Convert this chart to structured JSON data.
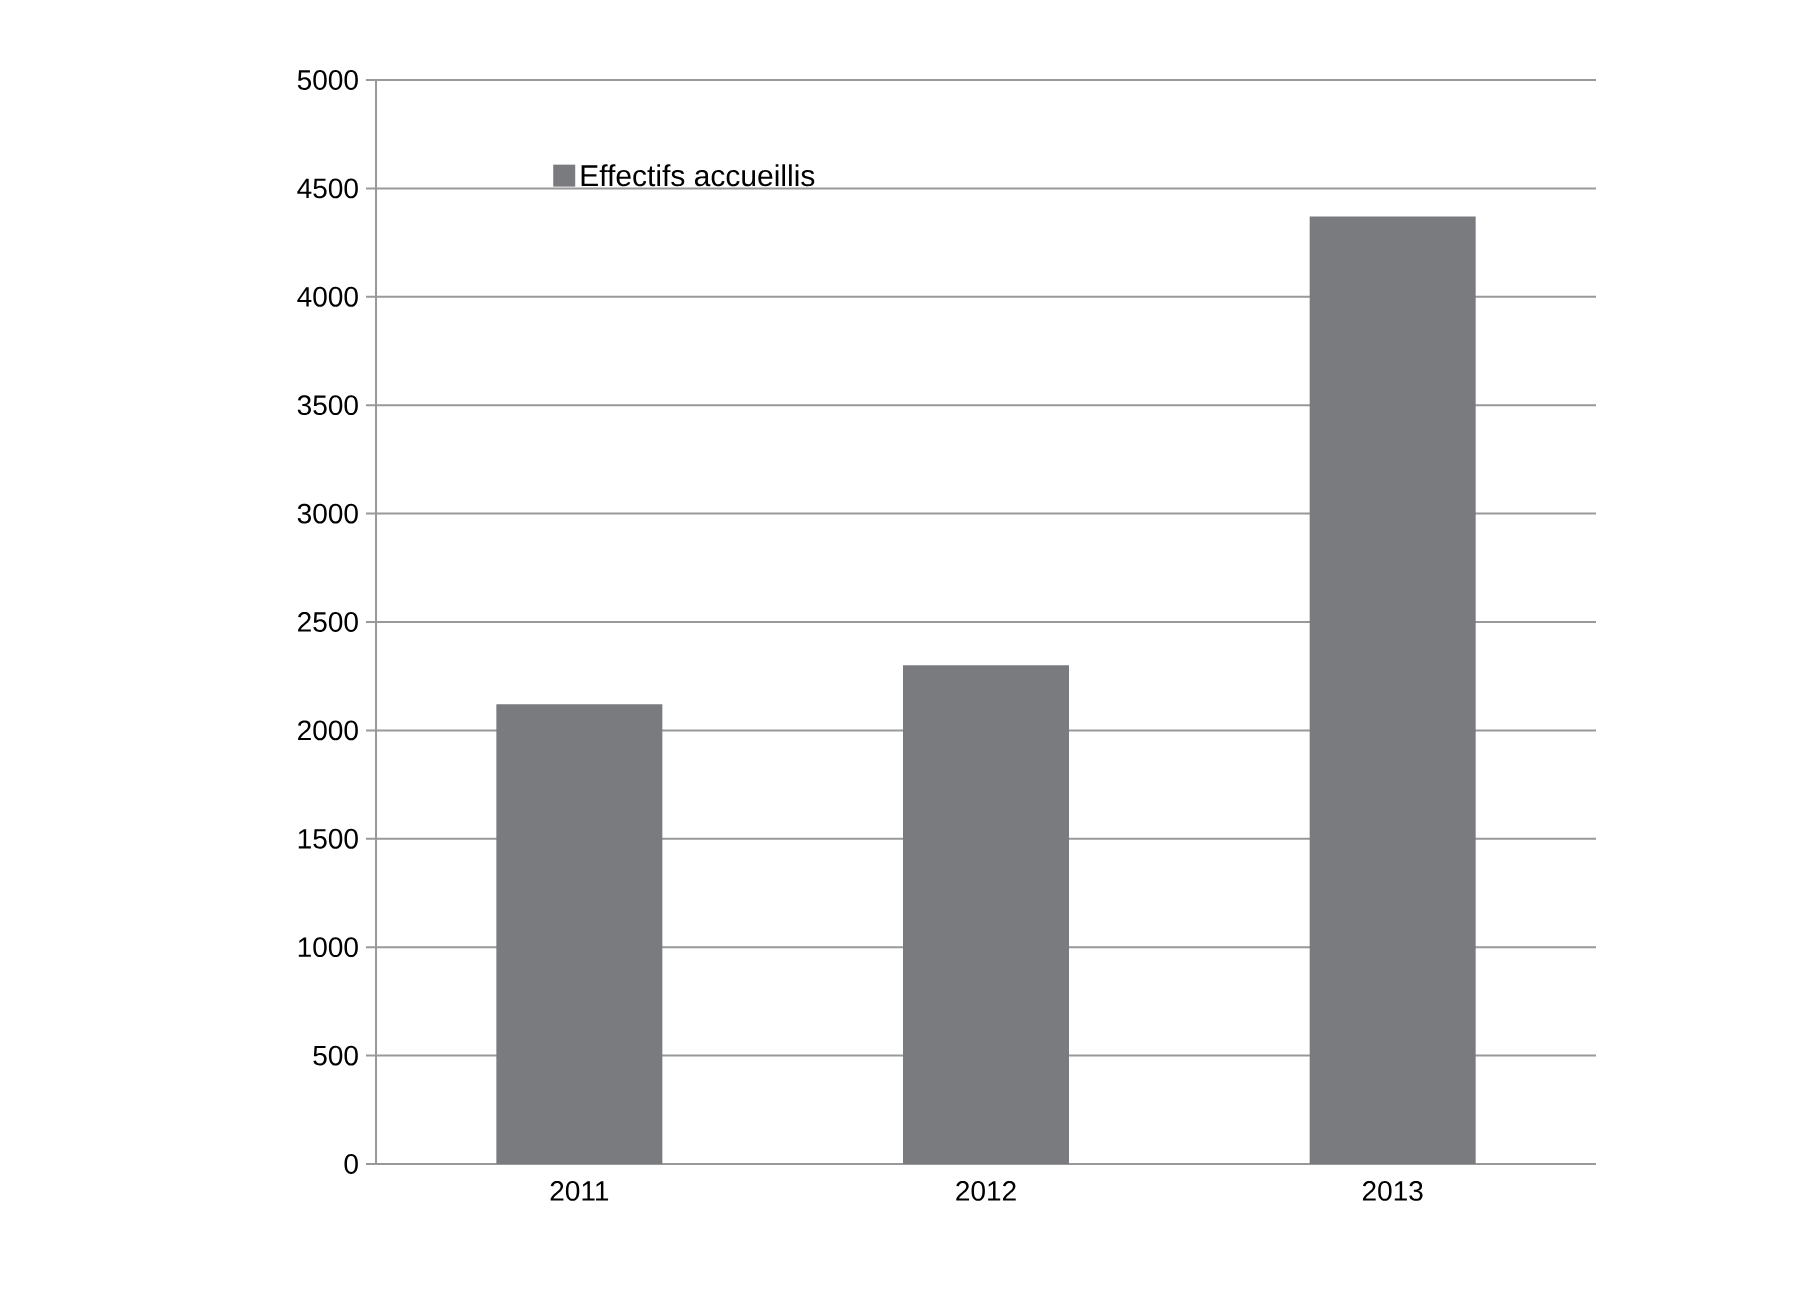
{
  "chart_data": {
    "type": "bar",
    "categories": [
      "2011",
      "2012",
      "2013"
    ],
    "series": [
      {
        "name": "Effectifs accueillis",
        "color": "#7a7b7f",
        "values": [
          2120,
          2300,
          4370
        ]
      }
    ],
    "ylim": [
      0,
      5000
    ],
    "yticks": [
      0,
      500,
      1000,
      1500,
      2000,
      2500,
      3000,
      3500,
      4000,
      4500,
      5000
    ],
    "grid": "y",
    "legend": "top left"
  }
}
